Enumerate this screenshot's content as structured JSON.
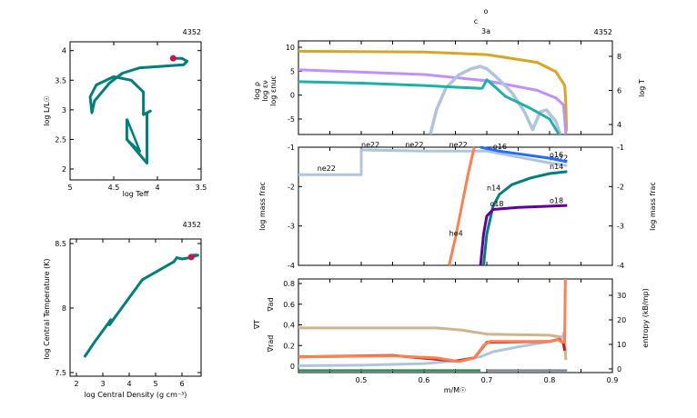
{
  "chart_data": [
    {
      "type": "line",
      "id": "hr",
      "xlabel": "log Teff",
      "ylabel": "log L/L☉",
      "corner_label": "4352",
      "xlim": [
        5,
        3.5
      ],
      "ylim": [
        1.85,
        4.2
      ],
      "xticks": [
        "5",
        "4.5",
        "4",
        "3.5"
      ],
      "yticks": [
        "2",
        "2.5",
        "3",
        "3.5",
        "4"
      ],
      "color": "#00807a",
      "marker_color": "#d0104c",
      "track": [
        [
          4.35,
          2.85
        ],
        [
          4.35,
          2.5
        ],
        [
          4.12,
          2.1
        ],
        [
          4.12,
          2.95
        ],
        [
          4.08,
          2.98
        ],
        [
          4.16,
          2.92
        ],
        [
          4.16,
          3.3
        ],
        [
          4.3,
          3.5
        ],
        [
          4.5,
          3.56
        ],
        [
          4.7,
          3.42
        ],
        [
          4.77,
          3.22
        ],
        [
          4.75,
          2.95
        ],
        [
          4.72,
          3.15
        ],
        [
          4.55,
          3.45
        ],
        [
          4.4,
          3.62
        ],
        [
          4.2,
          3.71
        ],
        [
          3.9,
          3.74
        ],
        [
          3.7,
          3.76
        ],
        [
          3.66,
          3.82
        ],
        [
          3.72,
          3.87
        ],
        [
          3.82,
          3.87
        ]
      ],
      "loop": [
        [
          4.35,
          2.85
        ],
        [
          4.2,
          2.3
        ],
        [
          4.35,
          2.5
        ]
      ],
      "current": [
        3.82,
        3.87
      ]
    },
    {
      "type": "line",
      "id": "tc",
      "xlabel": "log Central Density (g cm⁻³)",
      "ylabel": "log Central Temperature (K)",
      "corner_label": "4352",
      "xlim": [
        1.75,
        6.75
      ],
      "ylim": [
        7.48,
        8.52
      ],
      "xticks": [
        "2",
        "3",
        "4",
        "5",
        "6"
      ],
      "yticks": [
        "7.5",
        "8",
        "8.5"
      ],
      "color": "#00807a",
      "marker_color": "#d0104c",
      "track": [
        [
          2.3,
          7.62
        ],
        [
          2.7,
          7.74
        ],
        [
          3.2,
          7.88
        ],
        [
          3.3,
          7.91
        ],
        [
          3.25,
          7.87
        ],
        [
          3.5,
          7.94
        ],
        [
          4,
          8.08
        ],
        [
          4.5,
          8.22
        ],
        [
          5.7,
          8.36
        ],
        [
          5.8,
          8.39
        ],
        [
          6.0,
          8.38
        ],
        [
          6.3,
          8.39
        ],
        [
          6.6,
          8.41
        ],
        [
          6.4,
          8.41
        ]
      ],
      "current": [
        6.35,
        8.395
      ]
    },
    {
      "type": "line",
      "id": "profile-top",
      "title_lines": [
        "o",
        "c",
        "3a"
      ],
      "corner_label": "4352",
      "xlim": [
        0.4,
        0.9
      ],
      "ylim_left": [
        -8.2,
        11
      ],
      "ylim_right": [
        3.5,
        8.9
      ],
      "yticks_left": [
        "-5",
        "0",
        "5",
        "10"
      ],
      "yticks_right": [
        "4",
        "6",
        "8"
      ],
      "left_labels": [
        {
          "text": "log ρ",
          "color": "#c090ff"
        },
        {
          "text": "log εν",
          "color": "#20b0a8"
        },
        {
          "text": "log εnuc",
          "color": "#b0c4de"
        }
      ],
      "right_label": {
        "text": "log T",
        "color": "#daa520"
      },
      "series": [
        {
          "name": "log T",
          "axis": "right",
          "color": "#daa520",
          "points": [
            [
              0.4,
              8.3
            ],
            [
              0.6,
              8.25
            ],
            [
              0.7,
              8.1
            ],
            [
              0.78,
              7.65
            ],
            [
              0.81,
              7.1
            ],
            [
              0.824,
              6.3
            ],
            [
              0.826,
              5.2
            ],
            [
              0.827,
              3.6
            ]
          ]
        },
        {
          "name": "log ρ",
          "axis": "left",
          "color": "#c090ff",
          "points": [
            [
              0.4,
              5.3
            ],
            [
              0.6,
              4.3
            ],
            [
              0.7,
              3.0
            ],
            [
              0.78,
              1.0
            ],
            [
              0.81,
              -0.6
            ],
            [
              0.822,
              -2
            ],
            [
              0.824,
              -5
            ],
            [
              0.826,
              -8.2
            ]
          ]
        },
        {
          "name": "log εnuc",
          "axis": "left",
          "color": "#b0c4de",
          "points": [
            [
              0.61,
              -8.2
            ],
            [
              0.62,
              -3
            ],
            [
              0.635,
              1.5
            ],
            [
              0.655,
              4.2
            ],
            [
              0.675,
              5.5
            ],
            [
              0.69,
              6
            ],
            [
              0.7,
              5.5
            ],
            [
              0.72,
              3.2
            ],
            [
              0.74,
              0.5
            ],
            [
              0.76,
              -3.5
            ],
            [
              0.773,
              -7.2
            ],
            [
              0.785,
              -3.5
            ],
            [
              0.795,
              -3.1
            ],
            [
              0.81,
              -5.5
            ],
            [
              0.817,
              -8.2
            ]
          ]
        },
        {
          "name": "log εν",
          "axis": "left",
          "color": "#20b0a8",
          "points": [
            [
              0.4,
              2.8
            ],
            [
              0.5,
              2.5
            ],
            [
              0.6,
              2.0
            ],
            [
              0.69,
              1.4
            ],
            [
              0.693,
              1.5
            ],
            [
              0.7,
              3.2
            ],
            [
              0.715,
              1.5
            ],
            [
              0.73,
              -0.3
            ],
            [
              0.77,
              -2.8
            ],
            [
              0.8,
              -5
            ],
            [
              0.815,
              -8.2
            ]
          ]
        }
      ]
    },
    {
      "type": "line",
      "id": "abundances",
      "ylabel": "log mass frac",
      "xlim": [
        0.4,
        0.9
      ],
      "ylim": [
        -4,
        -1
      ],
      "yticks": [
        "-4",
        "-3",
        "-2",
        "-1"
      ],
      "series": [
        {
          "name": "ne22",
          "color": "#b0c4de",
          "points": [
            [
              0.4,
              -1.7
            ],
            [
              0.5,
              -1.7
            ],
            [
              0.5,
              -1.07
            ],
            [
              0.6,
              -1.1
            ],
            [
              0.7,
              -1.1
            ],
            [
              0.75,
              -1.25
            ],
            [
              0.8,
              -1.4
            ],
            [
              0.828,
              -1.47
            ]
          ],
          "labels": [
            [
              0.43,
              -1.6
            ],
            [
              0.5,
              -1.0
            ],
            [
              0.57,
              -1.0
            ],
            [
              0.64,
              -1.0
            ],
            [
              0.8,
              -1.33
            ]
          ]
        },
        {
          "name": "o16",
          "color": "#1e6fff",
          "points": [
            [
              0.69,
              -1.0
            ],
            [
              0.72,
              -1.1
            ],
            [
              0.8,
              -1.28
            ],
            [
              0.828,
              -1.37
            ]
          ],
          "labels": [
            [
              0.71,
              -1.05
            ],
            [
              0.8,
              -1.25
            ]
          ]
        },
        {
          "name": "n14",
          "color": "#00807a",
          "points": [
            [
              0.695,
              -4
            ],
            [
              0.7,
              -3.2
            ],
            [
              0.71,
              -2.5
            ],
            [
              0.72,
              -2.2
            ],
            [
              0.74,
              -1.95
            ],
            [
              0.77,
              -1.78
            ],
            [
              0.8,
              -1.67
            ],
            [
              0.828,
              -1.62
            ]
          ],
          "labels": [
            [
              0.7,
              -2.1
            ],
            [
              0.8,
              -1.55
            ]
          ]
        },
        {
          "name": "o18",
          "color": "#660099",
          "points": [
            [
              0.69,
              -4
            ],
            [
              0.695,
              -3.2
            ],
            [
              0.7,
              -2.75
            ],
            [
              0.71,
              -2.58
            ],
            [
              0.75,
              -2.53
            ],
            [
              0.828,
              -2.48
            ]
          ],
          "labels": [
            [
              0.705,
              -2.5
            ],
            [
              0.8,
              -2.42
            ]
          ]
        },
        {
          "name": "he4",
          "color": "#ff7f50",
          "points": [
            [
              0.64,
              -4
            ],
            [
              0.65,
              -3.3
            ],
            [
              0.66,
              -2.5
            ],
            [
              0.67,
              -1.7
            ],
            [
              0.68,
              -1.0
            ]
          ],
          "labels": [
            [
              0.64,
              -3.25
            ]
          ]
        }
      ]
    },
    {
      "type": "line",
      "id": "gradients",
      "xlabel": "m/M☉",
      "xlim": [
        0.4,
        0.9
      ],
      "ylim_left": [
        -0.05,
        0.85
      ],
      "ylim_right": [
        0,
        36
      ],
      "xticks": [
        "0.5",
        "0.6",
        "0.7",
        "0.8",
        "0.9"
      ],
      "yticks_left": [
        "0",
        "0.2",
        "0.4",
        "0.6",
        "0.8"
      ],
      "yticks_right": [
        "0",
        "10",
        "20",
        "30"
      ],
      "left_labels": [
        {
          "text": "∇ad",
          "color": "#d2b48c"
        },
        {
          "text": "∇T",
          "color": "#b22222"
        },
        {
          "text": "∇rad",
          "color": "#ff7f50"
        }
      ],
      "right_label": {
        "text": "entropy (kB/mp)",
        "color": "#000000"
      },
      "series": [
        {
          "name": "∇ad",
          "axis": "left",
          "color": "#d2b48c",
          "points": [
            [
              0.4,
              0.37
            ],
            [
              0.62,
              0.37
            ],
            [
              0.66,
              0.35
            ],
            [
              0.7,
              0.31
            ],
            [
              0.8,
              0.3
            ],
            [
              0.82,
              0.28
            ],
            [
              0.824,
              0.25
            ],
            [
              0.826,
              0.06
            ]
          ]
        },
        {
          "name": "entropy",
          "axis": "right",
          "color": "#b0c4de",
          "points": [
            [
              0.4,
              1.3
            ],
            [
              0.5,
              1.5
            ],
            [
              0.6,
              2.2
            ],
            [
              0.66,
              3.5
            ],
            [
              0.69,
              5
            ],
            [
              0.71,
              7
            ],
            [
              0.75,
              9
            ],
            [
              0.8,
              11.2
            ],
            [
              0.82,
              12.5
            ],
            [
              0.823,
              15
            ]
          ]
        },
        {
          "name": "∇T",
          "axis": "left",
          "color": "#b22222",
          "points": [
            [
              0.4,
              0.09
            ],
            [
              0.55,
              0.105
            ],
            [
              0.65,
              0.05
            ],
            [
              0.68,
              0.08
            ],
            [
              0.7,
              0.23
            ],
            [
              0.8,
              0.24
            ],
            [
              0.815,
              0.26
            ],
            [
              0.822,
              0.22
            ],
            [
              0.824,
              0.15
            ]
          ]
        },
        {
          "name": "∇rad",
          "axis": "left",
          "color": "#ff7f50",
          "points": [
            [
              0.4,
              0.09
            ],
            [
              0.55,
              0.1
            ],
            [
              0.62,
              0.08
            ],
            [
              0.655,
              0.045
            ],
            [
              0.68,
              0.08
            ],
            [
              0.695,
              0.2
            ],
            [
              0.705,
              0.24
            ],
            [
              0.8,
              0.24
            ],
            [
              0.813,
              0.26
            ],
            [
              0.82,
              0.23
            ],
            [
              0.824,
              0.24
            ],
            [
              0.825,
              0.85
            ]
          ]
        },
        {
          "name": "",
          "axis": "left",
          "color": "#2e8b57",
          "points": [
            [
              0.4,
              -0.04
            ],
            [
              0.69,
              -0.04
            ]
          ]
        },
        {
          "name": "",
          "axis": "left",
          "color": "#808890",
          "points": [
            [
              0.7,
              -0.04
            ],
            [
              0.828,
              -0.04
            ]
          ]
        }
      ]
    }
  ]
}
